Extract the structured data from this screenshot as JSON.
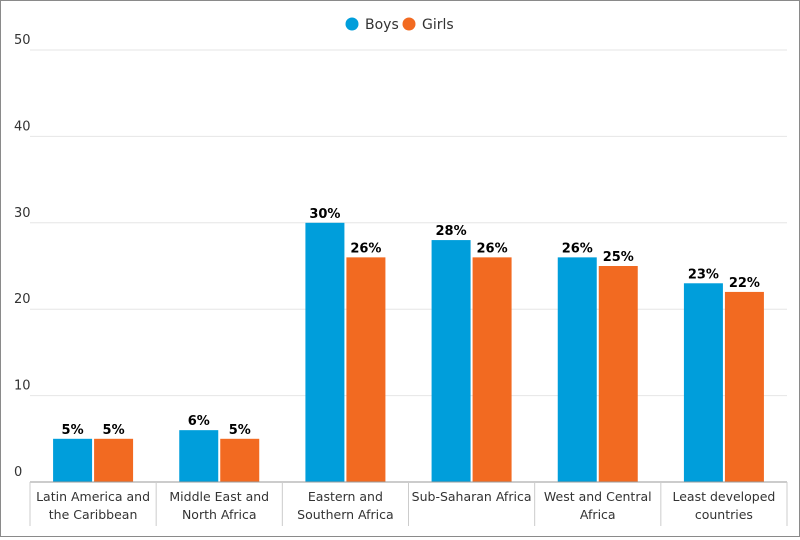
{
  "chart_data": {
    "type": "bar",
    "title": "",
    "xlabel": "",
    "ylabel": "",
    "ylim": [
      0,
      50
    ],
    "yticks": [
      0,
      10,
      20,
      30,
      40,
      50
    ],
    "grid": true,
    "legend_position": "top-center",
    "categories": [
      [
        "Latin America and",
        "the Caribbean"
      ],
      [
        "Middle East and",
        "North Africa"
      ],
      [
        "Eastern and",
        "Southern Africa"
      ],
      [
        "Sub-Saharan Africa"
      ],
      [
        "West and Central",
        "Africa"
      ],
      [
        "Least developed",
        "countries"
      ]
    ],
    "series": [
      {
        "name": "Boys",
        "color": "#009edb",
        "values": [
          5,
          6,
          30,
          28,
          26,
          23
        ],
        "labels": [
          "5%",
          "6%",
          "30%",
          "28%",
          "26%",
          "23%"
        ]
      },
      {
        "name": "Girls",
        "color": "#f26a21",
        "values": [
          5,
          5,
          26,
          26,
          25,
          22
        ],
        "labels": [
          "5%",
          "5%",
          "26%",
          "26%",
          "25%",
          "22%"
        ]
      }
    ]
  }
}
